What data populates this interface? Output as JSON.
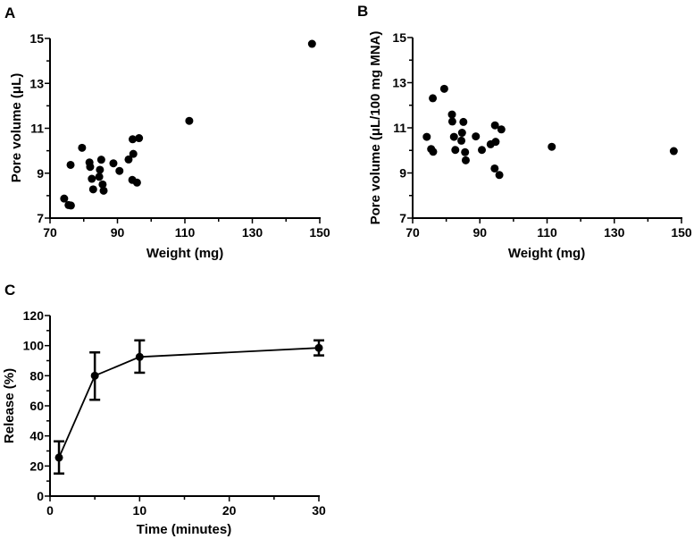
{
  "chart_data": [
    {
      "panel": "A",
      "type": "scatter",
      "xlabel": "Weight (mg)",
      "ylabel": "Pore volume (μL)",
      "xlim": [
        70,
        150
      ],
      "ylim": [
        7,
        15
      ],
      "xticks": [
        70,
        90,
        110,
        130,
        150
      ],
      "yticks": [
        7,
        9,
        11,
        13,
        15
      ],
      "points": [
        [
          74.2,
          7.87
        ],
        [
          75.5,
          7.58
        ],
        [
          76.2,
          7.56
        ],
        [
          76.1,
          9.37
        ],
        [
          79.5,
          10.13
        ],
        [
          81.7,
          9.48
        ],
        [
          81.9,
          9.28
        ],
        [
          82.4,
          8.75
        ],
        [
          82.8,
          8.28
        ],
        [
          84.8,
          9.15
        ],
        [
          84.6,
          8.84
        ],
        [
          85.2,
          9.6
        ],
        [
          85.6,
          8.5
        ],
        [
          85.9,
          8.22
        ],
        [
          88.8,
          9.44
        ],
        [
          90.6,
          9.1
        ],
        [
          93.3,
          9.61
        ],
        [
          94.7,
          9.86
        ],
        [
          94.5,
          10.51
        ],
        [
          96.4,
          10.56
        ],
        [
          94.4,
          8.7
        ],
        [
          95.8,
          8.58
        ],
        [
          111.3,
          11.33
        ],
        [
          147.7,
          14.76
        ]
      ]
    },
    {
      "panel": "B",
      "type": "scatter",
      "xlabel": "Weight (mg)",
      "ylabel": "Pore volume (μL/100 mg MNA)",
      "xlim": [
        70,
        150
      ],
      "ylim": [
        7,
        15
      ],
      "xticks": [
        70,
        90,
        110,
        130,
        150
      ],
      "yticks": [
        7,
        9,
        11,
        13,
        15
      ],
      "points": [
        [
          74.2,
          10.6
        ],
        [
          75.5,
          10.06
        ],
        [
          76.1,
          9.94
        ],
        [
          76.0,
          12.31
        ],
        [
          79.4,
          12.73
        ],
        [
          81.7,
          11.59
        ],
        [
          81.8,
          11.28
        ],
        [
          82.3,
          10.6
        ],
        [
          82.7,
          10.02
        ],
        [
          84.7,
          10.78
        ],
        [
          84.5,
          10.43
        ],
        [
          85.1,
          11.26
        ],
        [
          85.6,
          9.92
        ],
        [
          85.8,
          9.56
        ],
        [
          88.8,
          10.62
        ],
        [
          90.6,
          10.02
        ],
        [
          93.2,
          10.27
        ],
        [
          94.7,
          10.38
        ],
        [
          94.5,
          11.11
        ],
        [
          96.4,
          10.93
        ],
        [
          94.4,
          9.2
        ],
        [
          95.8,
          8.91
        ],
        [
          111.4,
          10.16
        ],
        [
          147.7,
          9.97
        ]
      ]
    },
    {
      "panel": "C",
      "type": "line",
      "xlabel": "Time (minutes)",
      "ylabel": "Release (%)",
      "xlim": [
        0,
        30
      ],
      "ylim": [
        0,
        120
      ],
      "xticks": [
        0,
        10,
        20,
        30
      ],
      "yticks": [
        0,
        20,
        40,
        60,
        80,
        100,
        120
      ],
      "x": [
        1,
        5,
        10,
        30
      ],
      "y": [
        25.6,
        80,
        92.5,
        98.5
      ],
      "err_low": [
        15,
        64,
        82,
        93.5
      ],
      "err_high": [
        36.4,
        95.5,
        103.5,
        103.5
      ]
    }
  ]
}
